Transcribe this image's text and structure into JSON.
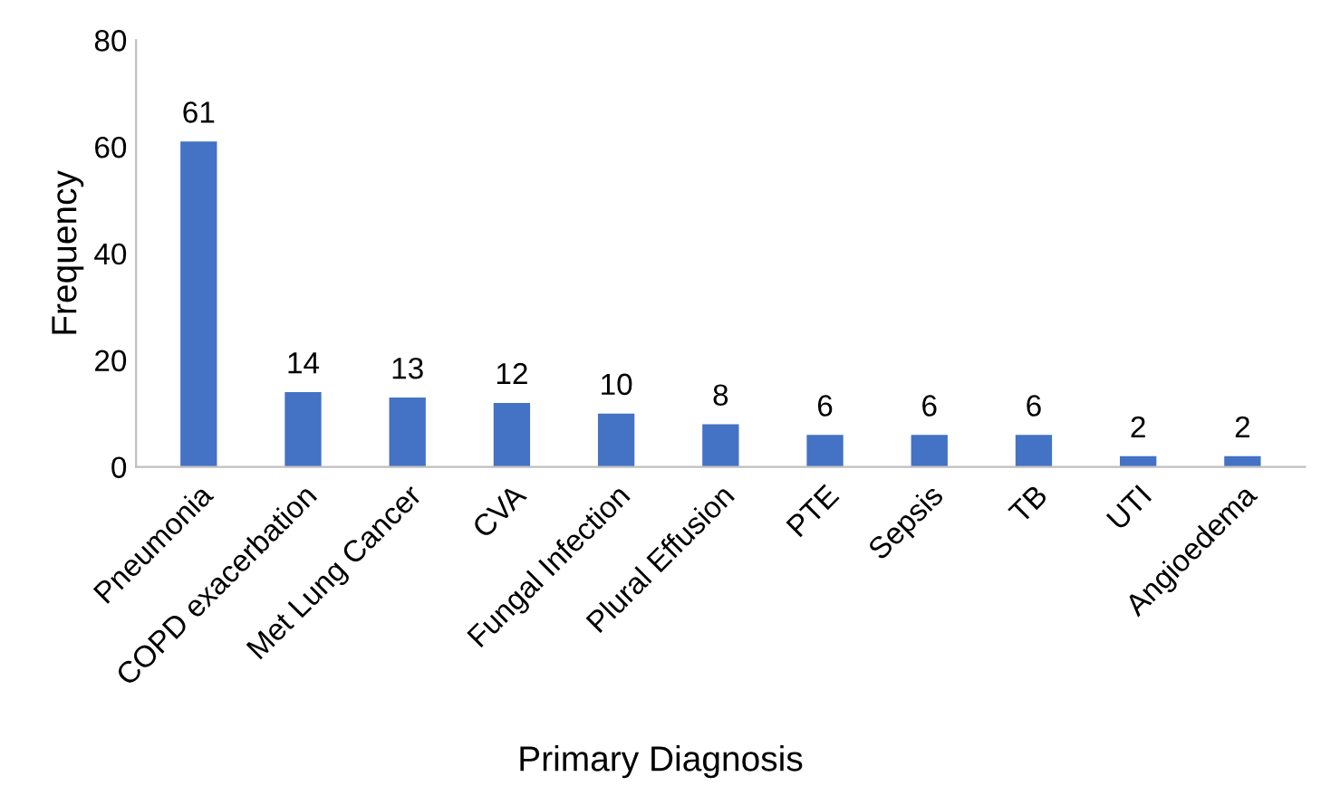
{
  "chart_data": {
    "type": "bar",
    "categories": [
      "Pneumonia",
      "COPD exacerbation",
      "Met Lung Cancer",
      "CVA",
      "Fungal Infection",
      "Plural Effusion",
      "PTE",
      "Sepsis",
      "TB",
      "UTI",
      "Angioedema"
    ],
    "values": [
      61,
      14,
      13,
      12,
      10,
      8,
      6,
      6,
      6,
      2,
      2
    ],
    "color": "#4472c4",
    "xlabel": "Primary Diagnosis",
    "ylabel": "Frequency",
    "ylim": [
      0,
      80
    ],
    "yticks": [
      0,
      20,
      40,
      60,
      80
    ],
    "data_labels": true,
    "grid": false,
    "legend": false
  }
}
